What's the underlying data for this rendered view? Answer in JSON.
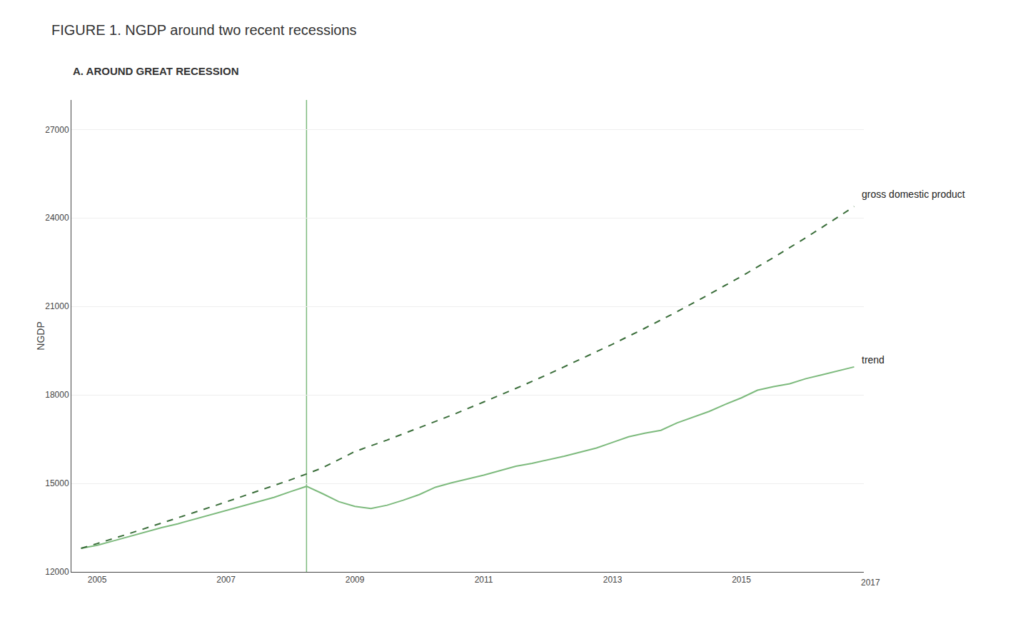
{
  "chart_data": {
    "type": "line",
    "title": "FIGURE 1. NGDP around two recent recessions",
    "subtitle": "A. AROUND GREAT RECESSION",
    "ylabel": "NGDP",
    "xlim": [
      2004.6,
      2016.9
    ],
    "xticks": [
      2005,
      2007,
      2009,
      2011,
      2013,
      2015
    ],
    "ylim": [
      12000,
      28000
    ],
    "yticks": [
      12000,
      15000,
      18000,
      21000,
      24000,
      27000
    ],
    "grid": true,
    "series": [
      {
        "color": "#7dba7d",
        "line_style": "solid",
        "x": [
          2004.75,
          2005.0,
          2005.25,
          2005.5,
          2005.75,
          2006.0,
          2006.25,
          2006.5,
          2006.75,
          2007.0,
          2007.25,
          2007.5,
          2007.75,
          2008.0,
          2008.25,
          2008.5,
          2008.75,
          2009.0,
          2009.25,
          2009.5,
          2009.75,
          2010.0,
          2010.25,
          2010.5,
          2010.75,
          2011.0,
          2011.25,
          2011.5,
          2011.75,
          2012.0,
          2012.25,
          2012.5,
          2012.75,
          2013.0,
          2013.25,
          2013.5,
          2013.75,
          2014.0,
          2014.25,
          2014.5,
          2014.75,
          2015.0,
          2015.25,
          2015.5,
          2015.75,
          2016.0,
          2016.25,
          2016.5,
          2016.75
        ],
        "values": [
          12800,
          12900,
          13050,
          13200,
          13350,
          13500,
          13630,
          13780,
          13930,
          14080,
          14230,
          14380,
          14530,
          14720,
          14900,
          14650,
          14380,
          14220,
          14150,
          14260,
          14430,
          14620,
          14870,
          15020,
          15150,
          15280,
          15430,
          15580,
          15680,
          15800,
          15920,
          16060,
          16200,
          16390,
          16580,
          16700,
          16800,
          17050,
          17250,
          17440,
          17680,
          17900,
          18160,
          18280,
          18380,
          18550,
          18680,
          18820,
          18950
        ]
      },
      {
        "color": "#3a6e3a",
        "line_style": "dashed",
        "x": [
          2004.75,
          2005.0,
          2005.5,
          2006.0,
          2006.5,
          2007.0,
          2007.5,
          2008.0,
          2008.25,
          2008.5,
          2009.0,
          2009.5,
          2010.0,
          2010.5,
          2011.0,
          2011.5,
          2012.0,
          2012.5,
          2013.0,
          2013.5,
          2014.0,
          2014.5,
          2015.0,
          2015.5,
          2016.0,
          2016.5,
          2016.75
        ],
        "values": [
          12800,
          12960,
          13300,
          13650,
          14010,
          14370,
          14740,
          15120,
          15320,
          15530,
          16080,
          16470,
          16890,
          17310,
          17760,
          18220,
          18700,
          19200,
          19720,
          20260,
          20820,
          21410,
          22020,
          22660,
          23330,
          24030,
          24390
        ]
      }
    ],
    "vlines": [
      {
        "x": 2008.25,
        "color": "#7dba7d"
      }
    ],
    "annotations": [
      {
        "text": "gross domestic product",
        "x": 2016.85,
        "y": 24800
      },
      {
        "text": "trend",
        "x": 2016.85,
        "y": 19200
      },
      {
        "text": "2017",
        "x": 2017,
        "y": 12000
      }
    ]
  }
}
